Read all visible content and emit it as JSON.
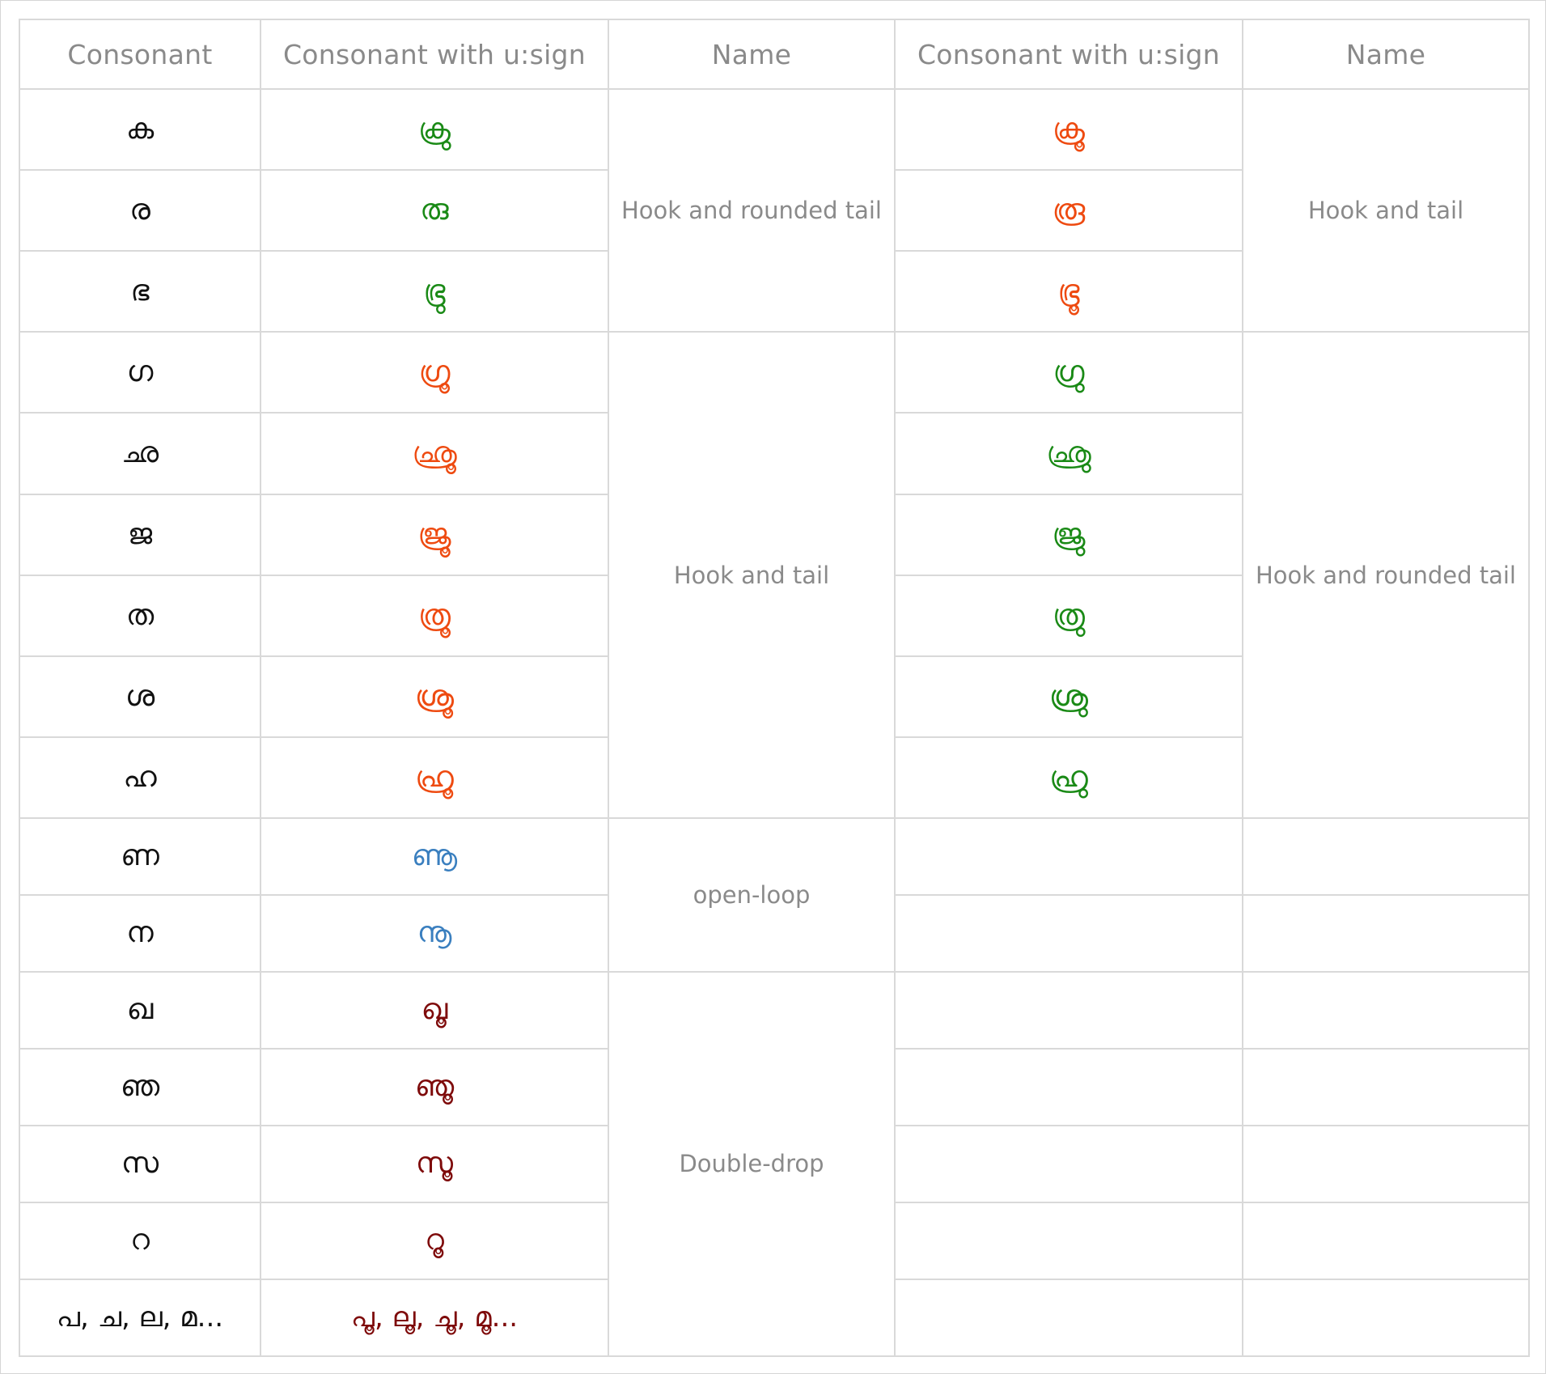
{
  "headers": [
    "Consonant",
    "Consonant with u:sign",
    "Name",
    "Consonant with u:sign",
    "Name"
  ],
  "colors": {
    "green": "#1a8a16",
    "orange": "#ee4a10",
    "blue": "#3a7fbf",
    "maroon": "#7e0a0a"
  },
  "rows": [
    {
      "consonant": "ക",
      "left_glyph": "ക്രു",
      "right_glyph": "ക്രൂ"
    },
    {
      "consonant": "ര",
      "left_glyph": "രു",
      "right_glyph": "രൂ"
    },
    {
      "consonant": "ഭ",
      "left_glyph": "ഭ്രു",
      "right_glyph": "ഭ്രൂ"
    },
    {
      "consonant": "ഗ",
      "left_glyph": "ഗ്രൂ",
      "right_glyph": "ഗ്രു"
    },
    {
      "consonant": "ഛ",
      "left_glyph": "ഛ്രൂ",
      "right_glyph": "ഛ്രു"
    },
    {
      "consonant": "ജ",
      "left_glyph": "ജ്രൂ",
      "right_glyph": "ജ്രു"
    },
    {
      "consonant": "ത",
      "left_glyph": "ത്രൂ",
      "right_glyph": "ത്രു"
    },
    {
      "consonant": "ശ",
      "left_glyph": "ശ്രൂ",
      "right_glyph": "ശ്രു"
    },
    {
      "consonant": "ഹ",
      "left_glyph": "ഹ്രൂ",
      "right_glyph": "ഹ്രു"
    },
    {
      "consonant": "ണ",
      "left_glyph": "ണൂ",
      "right_glyph": ""
    },
    {
      "consonant": "ന",
      "left_glyph": "നൂ",
      "right_glyph": ""
    },
    {
      "consonant": "ഖ",
      "left_glyph": "ഖൂ",
      "right_glyph": ""
    },
    {
      "consonant": "ഞ",
      "left_glyph": "ഞൂ",
      "right_glyph": ""
    },
    {
      "consonant": "സ",
      "left_glyph": "സൂ",
      "right_glyph": ""
    },
    {
      "consonant": "റ",
      "left_glyph": "റൂ",
      "right_glyph": ""
    },
    {
      "consonant": "പ, ച, ല, മ...",
      "left_glyph": "പൂ, ലൂ, ചൂ, മൂ...",
      "right_glyph": ""
    }
  ],
  "groups": {
    "g1_left_name": "Hook and rounded tail",
    "g1_right_name": "Hook and tail",
    "g2_left_name": "Hook and tail",
    "g2_right_name": "Hook and rounded tail",
    "g3_left_name": "open-loop",
    "g4_left_name": "Double-drop"
  }
}
